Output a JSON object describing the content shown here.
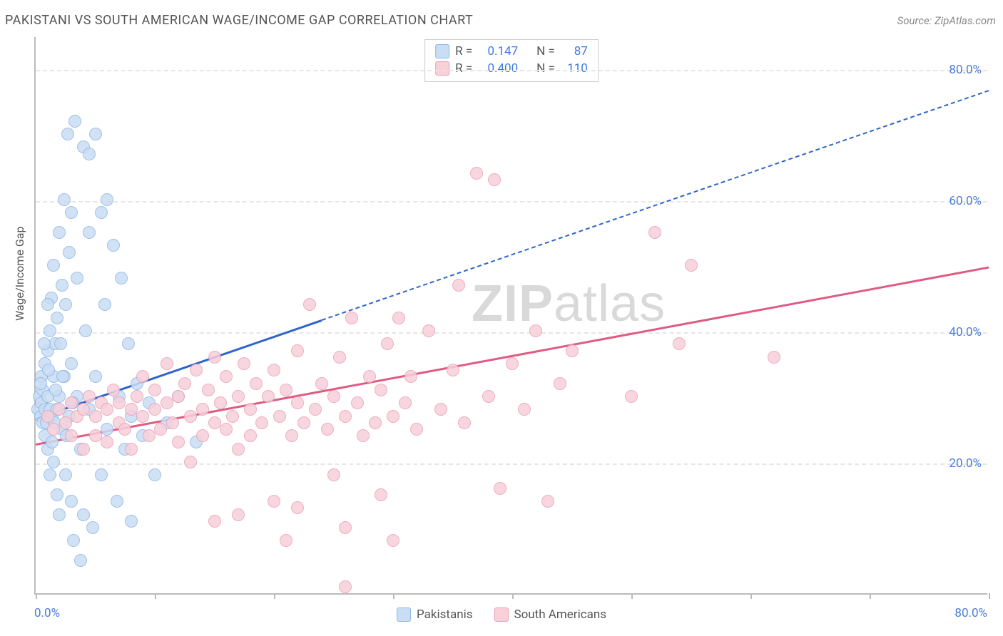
{
  "title": "PAKISTANI VS SOUTH AMERICAN WAGE/INCOME GAP CORRELATION CHART",
  "source": "Source: ZipAtlas.com",
  "ylabel": "Wage/Income Gap",
  "watermark_bold": "ZIP",
  "watermark_rest": "atlas",
  "chart": {
    "type": "scatter",
    "xlim": [
      0,
      80
    ],
    "ylim": [
      0,
      85
    ],
    "xtick_positions": [
      0,
      10,
      20,
      30,
      40,
      50,
      60,
      70,
      80
    ],
    "xaxis_end_labels": [
      "0.0%",
      "80.0%"
    ],
    "yticks": [
      {
        "v": 20,
        "label": "20.0%"
      },
      {
        "v": 40,
        "label": "40.0%"
      },
      {
        "v": 60,
        "label": "60.0%"
      },
      {
        "v": 80,
        "label": "80.0%"
      }
    ],
    "background_color": "#ffffff",
    "grid_color": "#e6e6e6",
    "axis_color": "#bbbbbb",
    "tick_label_color": "#4a7cd8",
    "marker_radius": 9,
    "marker_stroke_width": 1.5,
    "series": [
      {
        "id": "pakistanis",
        "label": "Pakistanis",
        "fill": "#c9ddf4",
        "stroke": "#8fb7e6",
        "R": "0.147",
        "N": "87",
        "trend": {
          "x1": 0,
          "y1": 27,
          "x2": 24,
          "y2": 42,
          "extend_to_x": 80,
          "color": "#2f64c9",
          "width": 3
        },
        "points": [
          [
            0.2,
            28
          ],
          [
            0.3,
            30
          ],
          [
            0.4,
            27
          ],
          [
            0.5,
            29
          ],
          [
            0.5,
            33
          ],
          [
            0.6,
            26
          ],
          [
            0.6,
            31
          ],
          [
            0.8,
            28
          ],
          [
            0.8,
            35
          ],
          [
            0.8,
            24
          ],
          [
            1.0,
            37
          ],
          [
            1.0,
            30
          ],
          [
            1.0,
            22
          ],
          [
            1.2,
            40
          ],
          [
            1.2,
            28
          ],
          [
            1.2,
            18
          ],
          [
            1.3,
            45
          ],
          [
            1.4,
            27
          ],
          [
            1.5,
            50
          ],
          [
            1.5,
            33
          ],
          [
            1.5,
            20
          ],
          [
            1.6,
            38
          ],
          [
            1.8,
            15
          ],
          [
            1.8,
            42
          ],
          [
            1.8,
            28
          ],
          [
            2.0,
            55
          ],
          [
            2.0,
            30
          ],
          [
            2.0,
            12
          ],
          [
            2.2,
            47
          ],
          [
            2.2,
            25
          ],
          [
            2.4,
            60
          ],
          [
            2.4,
            33
          ],
          [
            2.5,
            18
          ],
          [
            2.5,
            44
          ],
          [
            2.8,
            52
          ],
          [
            2.8,
            27
          ],
          [
            3.0,
            58
          ],
          [
            3.0,
            14
          ],
          [
            3.0,
            35
          ],
          [
            3.2,
            8
          ],
          [
            3.3,
            72
          ],
          [
            3.5,
            30
          ],
          [
            3.5,
            48
          ],
          [
            3.8,
            22
          ],
          [
            4.0,
            68
          ],
          [
            4.0,
            12
          ],
          [
            4.2,
            40
          ],
          [
            4.5,
            67
          ],
          [
            4.5,
            28
          ],
          [
            4.8,
            10
          ],
          [
            5.0,
            70
          ],
          [
            5.0,
            33
          ],
          [
            5.5,
            58
          ],
          [
            5.5,
            18
          ],
          [
            5.8,
            44
          ],
          [
            6.0,
            60
          ],
          [
            6.0,
            25
          ],
          [
            6.5,
            53
          ],
          [
            6.8,
            14
          ],
          [
            7.0,
            30
          ],
          [
            7.2,
            48
          ],
          [
            7.5,
            22
          ],
          [
            7.8,
            38
          ],
          [
            8.0,
            27
          ],
          [
            8.0,
            11
          ],
          [
            8.5,
            32
          ],
          [
            9.0,
            24
          ],
          [
            9.5,
            29
          ],
          [
            10.0,
            18
          ],
          [
            11.0,
            26
          ],
          [
            12.0,
            30
          ],
          [
            2.7,
            70
          ],
          [
            3.8,
            5
          ],
          [
            4.5,
            55
          ],
          [
            1.0,
            44
          ],
          [
            0.7,
            38
          ],
          [
            1.1,
            34
          ],
          [
            1.4,
            23
          ],
          [
            1.7,
            31
          ],
          [
            2.1,
            38
          ],
          [
            2.6,
            24
          ],
          [
            3.1,
            29
          ],
          [
            0.4,
            32
          ],
          [
            0.9,
            26
          ],
          [
            13.5,
            23
          ],
          [
            1.6,
            26
          ],
          [
            2.3,
            33
          ]
        ]
      },
      {
        "id": "south_americans",
        "label": "South Americans",
        "fill": "#f7d0da",
        "stroke": "#eba0b4",
        "R": "0.400",
        "N": "110",
        "trend": {
          "x1": 0,
          "y1": 23,
          "x2": 80,
          "y2": 50,
          "color": "#e05b83",
          "width": 3
        },
        "points": [
          [
            1.0,
            27
          ],
          [
            1.5,
            25
          ],
          [
            2.0,
            28
          ],
          [
            2.5,
            26
          ],
          [
            3.0,
            29
          ],
          [
            3.0,
            24
          ],
          [
            3.5,
            27
          ],
          [
            4.0,
            28
          ],
          [
            4.0,
            22
          ],
          [
            4.5,
            30
          ],
          [
            5.0,
            27
          ],
          [
            5.0,
            24
          ],
          [
            5.5,
            29
          ],
          [
            6.0,
            28
          ],
          [
            6.0,
            23
          ],
          [
            6.5,
            31
          ],
          [
            7.0,
            26
          ],
          [
            7.0,
            29
          ],
          [
            7.5,
            25
          ],
          [
            8.0,
            28
          ],
          [
            8.0,
            22
          ],
          [
            8.5,
            30
          ],
          [
            9.0,
            27
          ],
          [
            9.0,
            33
          ],
          [
            9.5,
            24
          ],
          [
            10.0,
            28
          ],
          [
            10.0,
            31
          ],
          [
            10.5,
            25
          ],
          [
            11.0,
            29
          ],
          [
            11.0,
            35
          ],
          [
            11.5,
            26
          ],
          [
            12.0,
            30
          ],
          [
            12.0,
            23
          ],
          [
            12.5,
            32
          ],
          [
            13.0,
            27
          ],
          [
            13.0,
            20
          ],
          [
            13.5,
            34
          ],
          [
            14.0,
            28
          ],
          [
            14.0,
            24
          ],
          [
            14.5,
            31
          ],
          [
            15.0,
            26
          ],
          [
            15.0,
            36
          ],
          [
            15.5,
            29
          ],
          [
            16.0,
            25
          ],
          [
            16.0,
            33
          ],
          [
            16.5,
            27
          ],
          [
            17.0,
            30
          ],
          [
            17.0,
            22
          ],
          [
            17.5,
            35
          ],
          [
            18.0,
            28
          ],
          [
            18.0,
            24
          ],
          [
            18.5,
            32
          ],
          [
            19.0,
            26
          ],
          [
            19.5,
            30
          ],
          [
            20.0,
            14
          ],
          [
            20.0,
            34
          ],
          [
            20.5,
            27
          ],
          [
            21.0,
            31
          ],
          [
            21.5,
            24
          ],
          [
            22.0,
            29
          ],
          [
            22.0,
            37
          ],
          [
            22.5,
            26
          ],
          [
            23.0,
            44
          ],
          [
            23.5,
            28
          ],
          [
            24.0,
            32
          ],
          [
            24.5,
            25
          ],
          [
            25.0,
            30
          ],
          [
            25.0,
            18
          ],
          [
            25.5,
            36
          ],
          [
            26.0,
            27
          ],
          [
            26.5,
            42
          ],
          [
            27.0,
            29
          ],
          [
            27.5,
            24
          ],
          [
            28.0,
            33
          ],
          [
            28.5,
            26
          ],
          [
            29.0,
            31
          ],
          [
            29.0,
            15
          ],
          [
            29.5,
            38
          ],
          [
            30.0,
            27
          ],
          [
            30.5,
            42
          ],
          [
            31.0,
            29
          ],
          [
            31.5,
            33
          ],
          [
            32.0,
            25
          ],
          [
            33.0,
            40
          ],
          [
            34.0,
            28
          ],
          [
            35.0,
            34
          ],
          [
            35.5,
            47
          ],
          [
            36.0,
            26
          ],
          [
            37.0,
            64
          ],
          [
            38.0,
            30
          ],
          [
            38.5,
            63
          ],
          [
            39.0,
            16
          ],
          [
            40.0,
            35
          ],
          [
            41.0,
            28
          ],
          [
            42.0,
            40
          ],
          [
            43.0,
            14
          ],
          [
            44.0,
            32
          ],
          [
            45.0,
            37
          ],
          [
            50.0,
            30
          ],
          [
            52.0,
            55
          ],
          [
            54.0,
            38
          ],
          [
            55.0,
            50
          ],
          [
            62.0,
            36
          ],
          [
            15.0,
            11
          ],
          [
            17.0,
            12
          ],
          [
            22.0,
            13
          ],
          [
            26.0,
            10
          ],
          [
            30.0,
            8
          ],
          [
            26.0,
            1
          ],
          [
            21.0,
            8
          ]
        ]
      }
    ]
  },
  "stats_labels": {
    "R": "R =",
    "N": "N ="
  },
  "legend": {
    "items": [
      {
        "label": "Pakistanis",
        "fill": "#c9ddf4",
        "stroke": "#8fb7e6"
      },
      {
        "label": "South Americans",
        "fill": "#f7d0da",
        "stroke": "#eba0b4"
      }
    ]
  }
}
